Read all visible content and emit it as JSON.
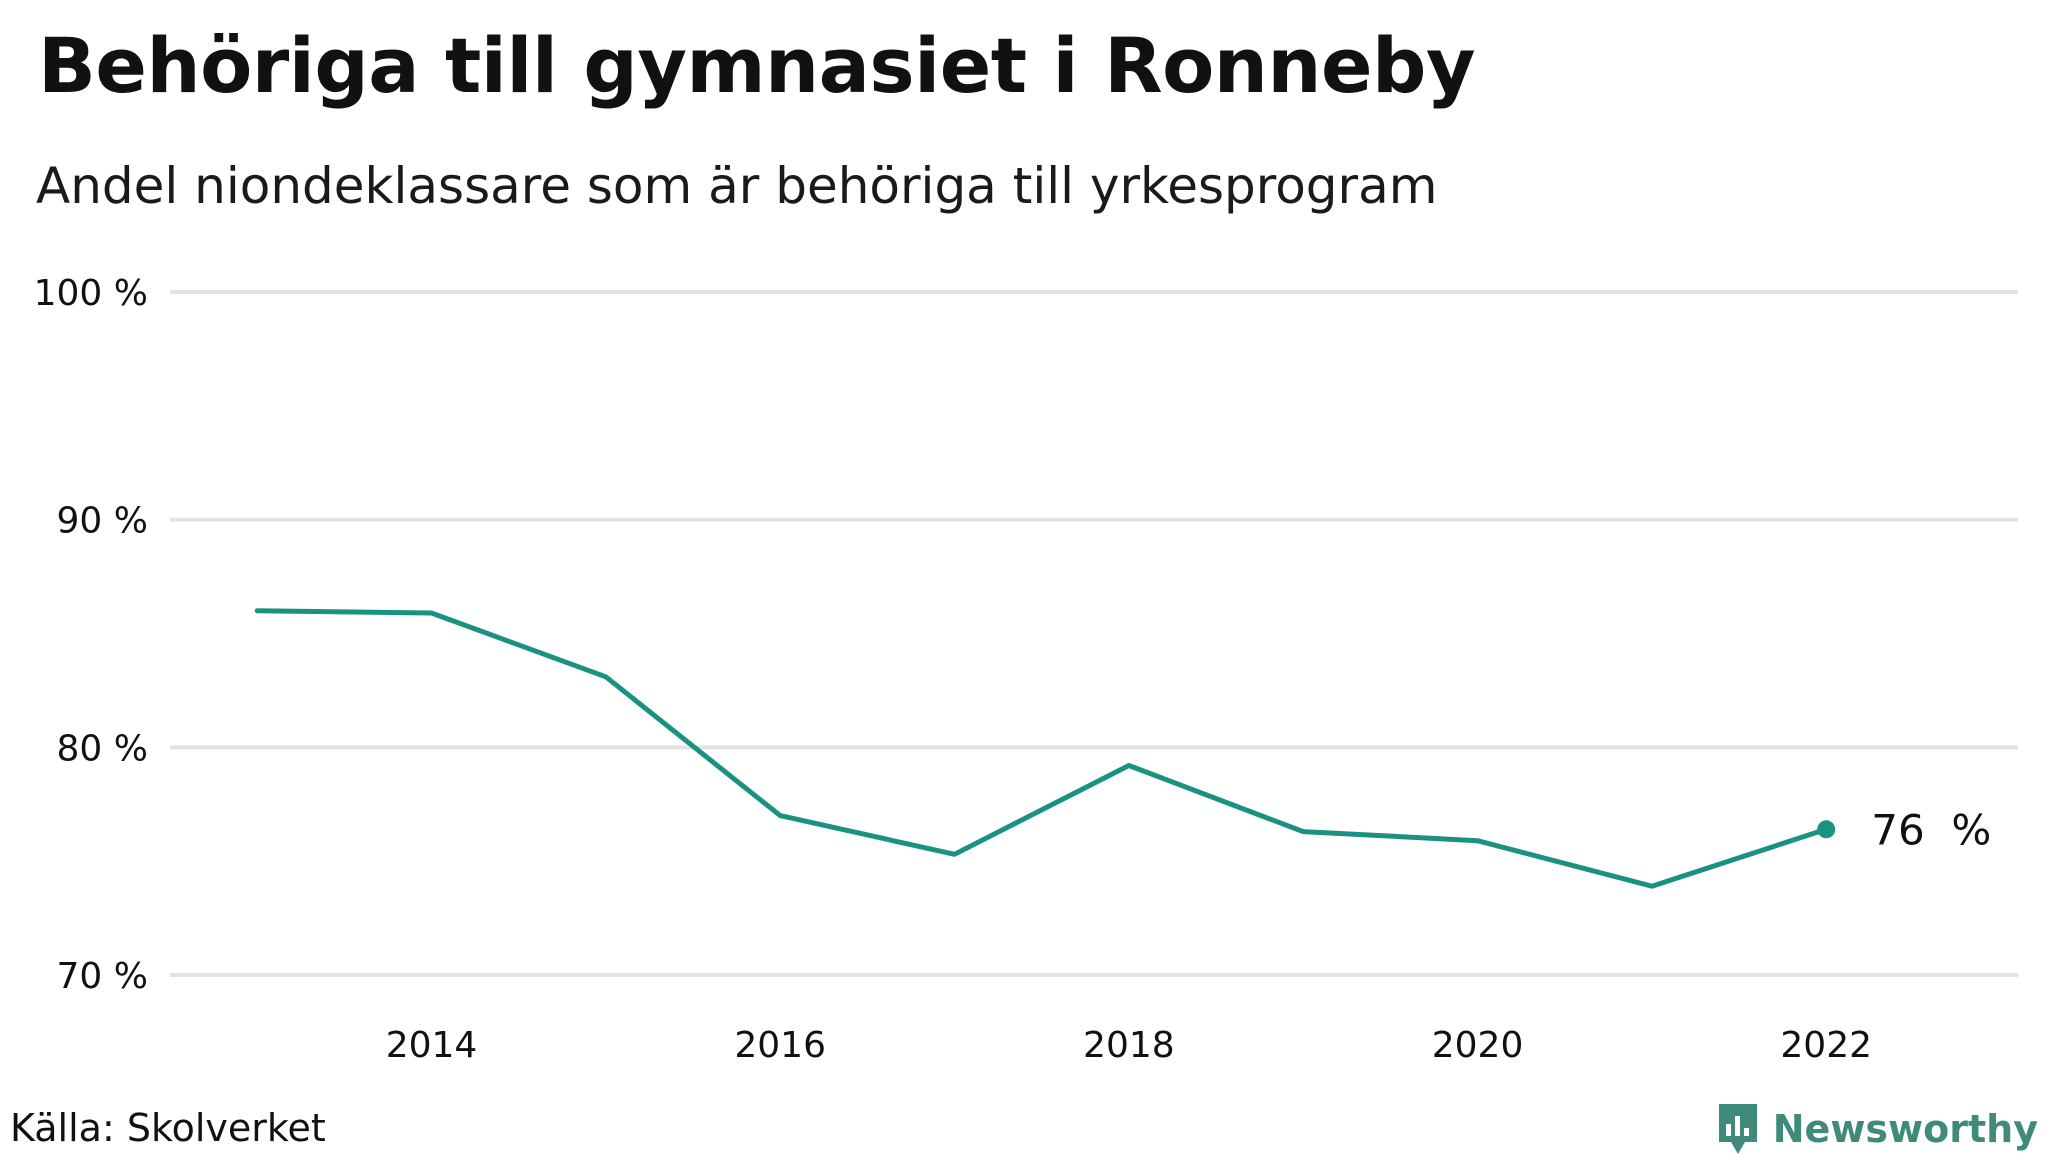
{
  "chart_data": {
    "type": "line",
    "title": "Behöriga till gymnasiet i Ronneby",
    "subtitle": "Andel niondeklassare som är behöriga till yrkesprogram",
    "x": [
      2013,
      2014,
      2015,
      2016,
      2017,
      2018,
      2019,
      2020,
      2021,
      2022
    ],
    "series": [
      {
        "values": [
          86.0,
          85.9,
          83.1,
          77.0,
          75.3,
          79.2,
          76.3,
          75.9,
          73.9,
          76.4
        ],
        "color": "#1a9281"
      }
    ],
    "xticks": [
      2014,
      2016,
      2018,
      2020,
      2022
    ],
    "xtick_labels": [
      "2014",
      "2016",
      "2018",
      "2020",
      "2022"
    ],
    "yticks": [
      70,
      80,
      90,
      100
    ],
    "ytick_labels": [
      "70 %",
      "80 %",
      "90 %",
      "100 %"
    ],
    "ylim": [
      70,
      100
    ],
    "xlim": [
      2012.5,
      2023.1
    ],
    "grid": true,
    "last_value_label": "76  %",
    "source": "Källa: Skolverket",
    "brand": "Newsworthy",
    "colors": {
      "line": "#1a9281",
      "grid": "#e3e3e3",
      "brand": "#3f8a7b"
    }
  }
}
